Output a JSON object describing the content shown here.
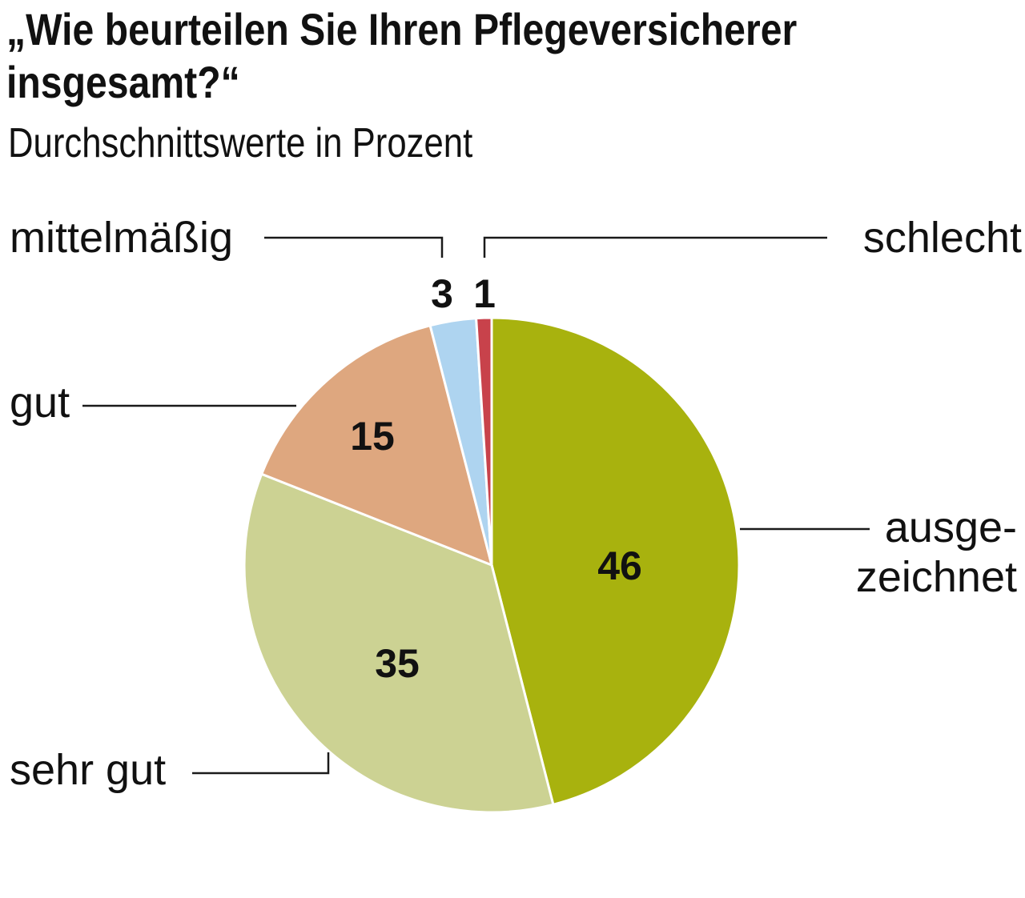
{
  "title": "„Wie beurteilen Sie Ihren Pflegeversicherer insgesamt?“",
  "subtitle": "Durchschnittswerte in Prozent",
  "chart_data": {
    "type": "pie",
    "title": "„Wie beurteilen Sie Ihren Pflegeversicherer insgesamt?“",
    "subtitle": "Durchschnittswerte in Prozent",
    "categories": [
      "ausgezeichnet",
      "sehr gut",
      "gut",
      "mittelmäßig",
      "schlecht"
    ],
    "display_labels": [
      [
        "ausge-",
        "zeichnet"
      ],
      [
        "sehr gut"
      ],
      [
        "gut"
      ],
      [
        "mittelmäßig"
      ],
      [
        "schlecht"
      ]
    ],
    "values": [
      46,
      35,
      15,
      3,
      1
    ],
    "value_labels": [
      "46",
      "35",
      "15",
      "3",
      "1"
    ],
    "colors": [
      "#a8b20e",
      "#ccd293",
      "#dea77f",
      "#aed4f0",
      "#c8424b"
    ],
    "start": "12 o'clock",
    "direction": "clockwise",
    "legend": "none"
  }
}
